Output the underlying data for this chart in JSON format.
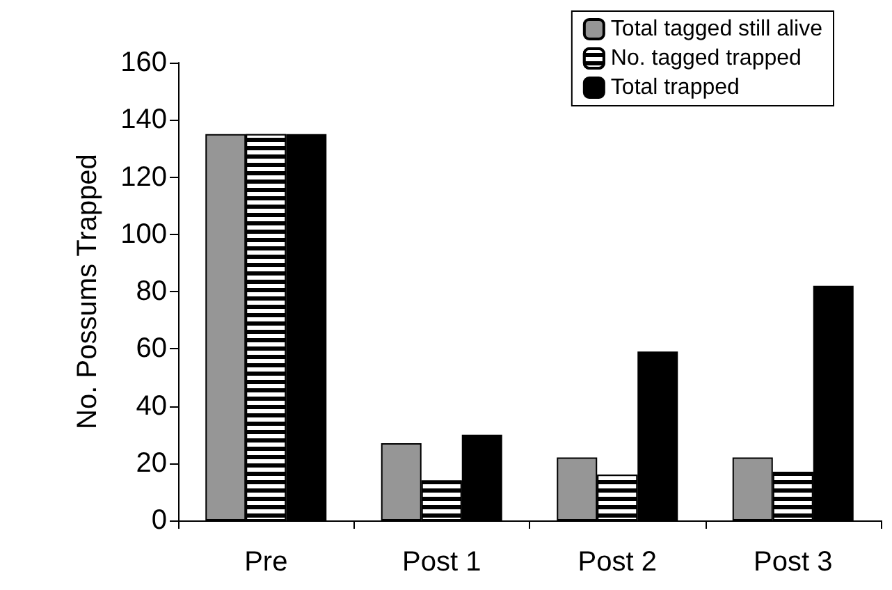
{
  "chart_data": {
    "type": "bar",
    "ylabel": "No. Possums Trapped",
    "categories": [
      "Pre",
      "Post 1",
      "Post 2",
      "Post 3"
    ],
    "series": [
      {
        "name": "Total tagged still alive",
        "color": "#969696",
        "values": [
          135,
          27,
          22,
          22
        ]
      },
      {
        "name": "No. tagged trapped",
        "color": "#000000",
        "values": [
          135,
          14,
          16,
          17
        ]
      },
      {
        "name": "Total trapped",
        "color": "#000000",
        "values": [
          135,
          30,
          59,
          82
        ]
      }
    ],
    "ylim": [
      0,
      160
    ],
    "yticks": [
      0,
      20,
      40,
      60,
      80,
      100,
      120,
      140,
      160
    ],
    "grid": false,
    "legend": "top right"
  }
}
